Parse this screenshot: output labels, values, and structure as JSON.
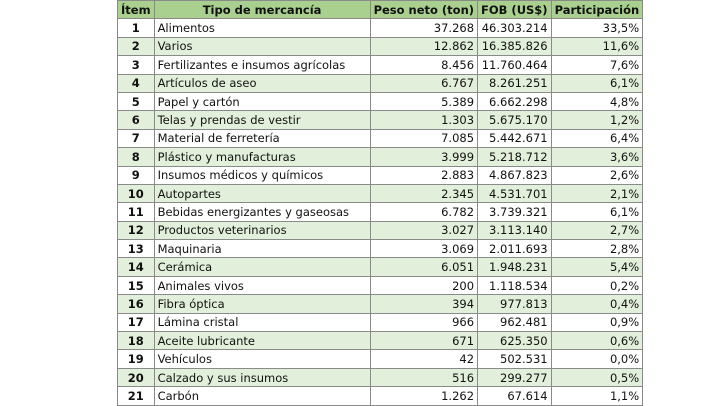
{
  "table": {
    "header": [
      "Ítem",
      "Tipo de mercancía",
      "Peso neto (ton)",
      "FOB (US$)",
      "Participación"
    ],
    "rows": [
      [
        "1",
        "Alimentos",
        "37.268",
        "46.303.214",
        "33,5%"
      ],
      [
        "2",
        "Varios",
        "12.862",
        "16.385.826",
        "11,6%"
      ],
      [
        "3",
        "Fertilizantes e insumos agrícolas",
        "8.456",
        "11.760.464",
        "7,6%"
      ],
      [
        "4",
        "Artículos de aseo",
        "6.767",
        "8.261.251",
        "6,1%"
      ],
      [
        "5",
        "Papel y cartón",
        "5.389",
        "6.662.298",
        "4,8%"
      ],
      [
        "6",
        "Telas y prendas de vestir",
        "1.303",
        "5.675.170",
        "1,2%"
      ],
      [
        "7",
        "Material de ferretería",
        "7.085",
        "5.442.671",
        "6,4%"
      ],
      [
        "8",
        "Plástico y manufacturas",
        "3.999",
        "5.218.712",
        "3,6%"
      ],
      [
        "9",
        "Insumos médicos y químicos",
        "2.883",
        "4.867.823",
        "2,6%"
      ],
      [
        "10",
        "Autopartes",
        "2.345",
        "4.531.701",
        "2,1%"
      ],
      [
        "11",
        "Bebidas energizantes y gaseosas",
        "6.782",
        "3.739.321",
        "6,1%"
      ],
      [
        "12",
        "Productos veterinarios",
        "3.027",
        "3.113.140",
        "2,7%"
      ],
      [
        "13",
        "Maquinaria",
        "3.069",
        "2.011.693",
        "2,8%"
      ],
      [
        "14",
        "Cerámica",
        "6.051",
        "1.948.231",
        "5,4%"
      ],
      [
        "15",
        "Animales vivos",
        "200",
        "1.118.534",
        "0,2%"
      ],
      [
        "16",
        "Fibra óptica",
        "394",
        "977.813",
        "0,4%"
      ],
      [
        "17",
        "Lámina cristal",
        "966",
        "962.481",
        "0,9%"
      ],
      [
        "18",
        "Aceite lubricante",
        "671",
        "625.350",
        "0,6%"
      ],
      [
        "19",
        "Vehículos",
        "42",
        "502.531",
        "0,0%"
      ],
      [
        "20",
        "Calzado y sus insumos",
        "516",
        "299.277",
        "0,5%"
      ],
      [
        "21",
        "Carbón",
        "1.262",
        "67.614",
        "1,1%"
      ]
    ]
  }
}
